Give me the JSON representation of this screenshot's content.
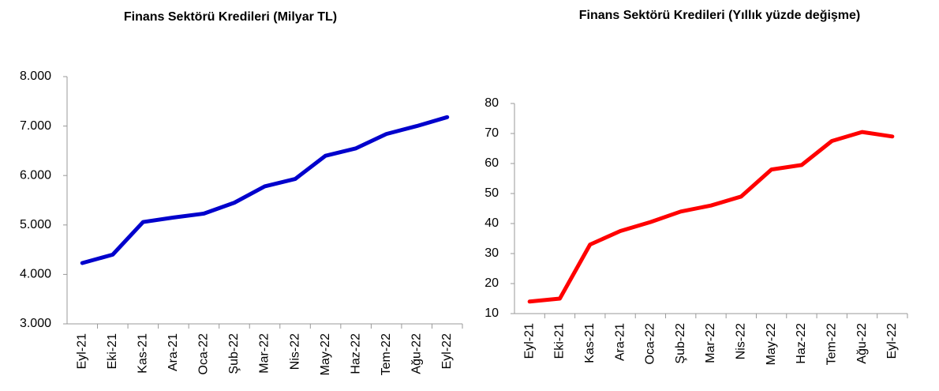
{
  "chart_data": [
    {
      "type": "line",
      "title": "Finans Sektörü Kredileri (Milyar TL)",
      "categories": [
        "Eyl-21",
        "Eki-21",
        "Kas-21",
        "Ara-21",
        "Oca-22",
        "Şub-22",
        "Mar-22",
        "Nis-22",
        "May-22",
        "Haz-22",
        "Tem-22",
        "Ağu-22",
        "Eyl-22"
      ],
      "series": [
        {
          "name": "Finans Sektörü Kredileri",
          "color": "#0000cc",
          "values": [
            4230,
            4400,
            5060,
            5150,
            5230,
            5450,
            5780,
            5930,
            6400,
            6550,
            6840,
            7000,
            7180
          ]
        }
      ],
      "ylim": [
        3000,
        8000
      ],
      "yticks": [
        {
          "value": 3000,
          "label": "3.000"
        },
        {
          "value": 4000,
          "label": "4.000"
        },
        {
          "value": 5000,
          "label": "5.000"
        },
        {
          "value": 6000,
          "label": "6.000"
        },
        {
          "value": 7000,
          "label": "7.000"
        },
        {
          "value": 8000,
          "label": "8.000"
        }
      ]
    },
    {
      "type": "line",
      "title": "Finans Sektörü Kredileri (Yıllık yüzde değişme)",
      "categories": [
        "Eyl-21",
        "Eki-21",
        "Kas-21",
        "Ara-21",
        "Oca-22",
        "Şub-22",
        "Mar-22",
        "Nis-22",
        "May-22",
        "Haz-22",
        "Tem-22",
        "Ağu-22",
        "Eyl-22"
      ],
      "series": [
        {
          "name": "Yıllık yüzde değişme",
          "color": "#ff0000",
          "values": [
            14,
            15,
            33,
            37.5,
            40.5,
            44,
            46,
            49,
            58,
            59.5,
            67.5,
            70.5,
            69
          ]
        }
      ],
      "ylim": [
        10,
        80
      ],
      "yticks": [
        10,
        20,
        30,
        40,
        50,
        60,
        70,
        80
      ]
    }
  ]
}
